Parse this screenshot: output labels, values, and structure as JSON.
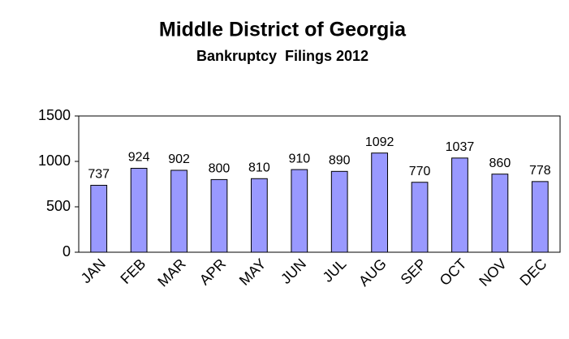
{
  "chart_data": {
    "type": "bar",
    "title": "Middle District of Georgia",
    "subtitle": "Bankruptcy  Filings 2012",
    "categories": [
      "JAN",
      "FEB",
      "MAR",
      "APR",
      "MAY",
      "JUN",
      "JUL",
      "AUG",
      "SEP",
      "OCT",
      "NOV",
      "DEC"
    ],
    "values": [
      737,
      924,
      902,
      800,
      810,
      910,
      890,
      1092,
      770,
      1037,
      860,
      778
    ],
    "color": "#9999ff",
    "ylim": [
      0,
      1500
    ],
    "yticks": [
      0,
      500,
      1000,
      1500
    ],
    "grid": false
  }
}
